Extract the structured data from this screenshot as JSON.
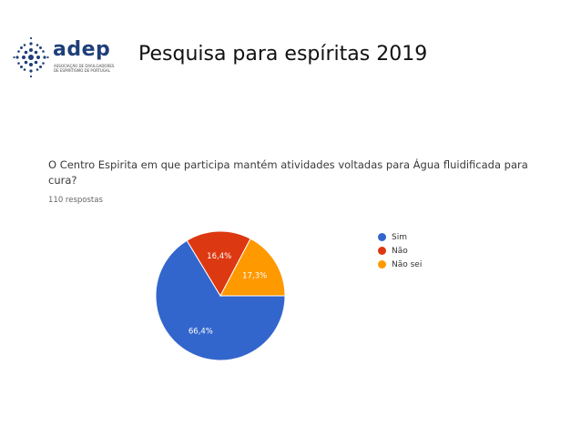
{
  "header": {
    "logo_text": "adep",
    "logo_subtitle": "ASSOCIAÇÃO DE DIVULGADORES DE ESPIRITISMO DE PORTUGAL",
    "title": "Pesquisa para espíritas  2019"
  },
  "form": {
    "question": "O Centro Espirita em que participa mantém atividades voltadas para Água fluidificada para cura?",
    "responses": "110 respostas"
  },
  "colors": {
    "logo": "#1f3f7a",
    "sim": "#3366cc",
    "nao": "#dc3912",
    "nao_sei": "#ff9900"
  },
  "chart_data": {
    "type": "pie",
    "categories": [
      "Sim",
      "Não",
      "Não sei"
    ],
    "values": [
      66.4,
      16.4,
      17.3
    ],
    "labels": [
      "66,4%",
      "16,4%",
      "17,3%"
    ],
    "colors": [
      "#3366cc",
      "#dc3912",
      "#ff9900"
    ],
    "legend": "right"
  }
}
